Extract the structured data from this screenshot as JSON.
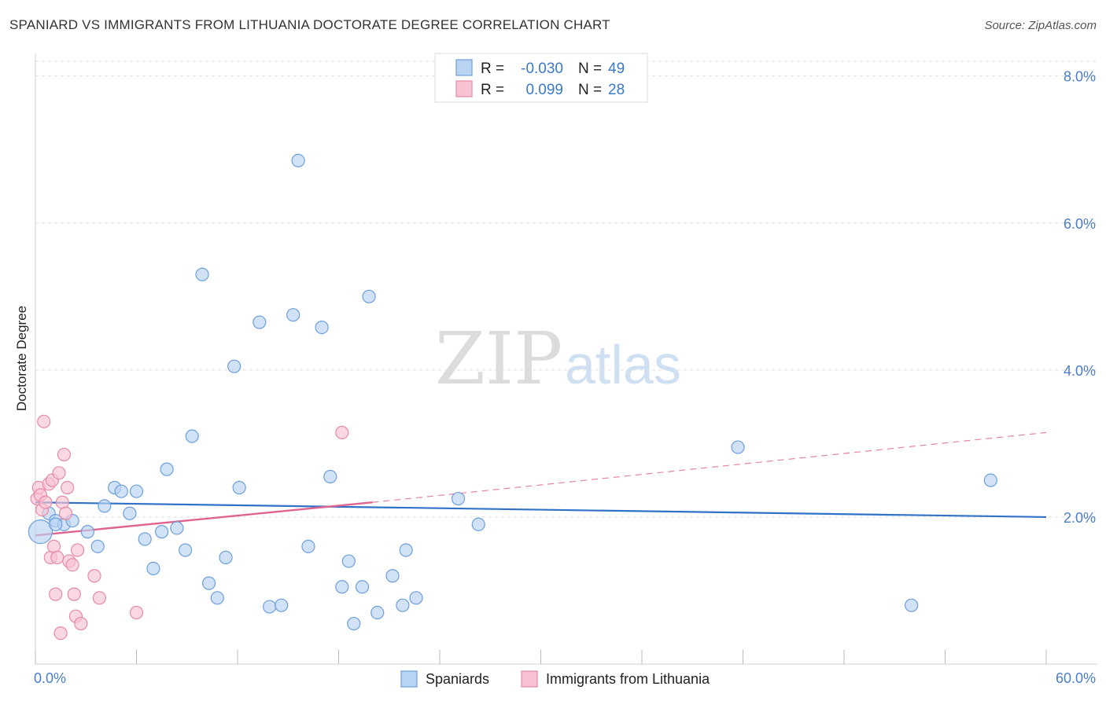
{
  "title": "SPANIARD VS IMMIGRANTS FROM LITHUANIA DOCTORATE DEGREE CORRELATION CHART",
  "source": "Source: ZipAtlas.com",
  "watermark": {
    "zip": "ZIP",
    "atlas": "atlas"
  },
  "colors": {
    "blue_fill": "#b9d3f2",
    "blue_stroke": "#6d9fdb",
    "blue_line": "#2f72c8",
    "pink_fill": "#f7c3d2",
    "pink_stroke": "#e68aa8",
    "pink_line": "#e0648f",
    "grid": "#dddddd",
    "tick_label": "#4a7ec9"
  },
  "legend": {
    "rows": [
      {
        "r_label": "R =",
        "r_value": "-0.030",
        "n_label": "N =",
        "n_value": "49"
      },
      {
        "r_label": "R =",
        "r_value": "0.099",
        "n_label": "N =",
        "n_value": "28"
      }
    ]
  },
  "chart_data": {
    "type": "scatter",
    "title": "SPANIARD VS IMMIGRANTS FROM LITHUANIA DOCTORATE DEGREE CORRELATION CHART",
    "xlabel": "",
    "ylabel": "Doctorate Degree",
    "xlim": [
      0,
      60
    ],
    "ylim": [
      0,
      8.2
    ],
    "x_tick_labels": [
      "0.0%",
      "60.0%"
    ],
    "y_ticks": [
      2,
      4,
      6,
      8
    ],
    "y_tick_labels": [
      "2.0%",
      "4.0%",
      "6.0%",
      "8.0%"
    ],
    "grid": true,
    "series": [
      {
        "name": "Spaniards",
        "r": -0.03,
        "n": 49,
        "trend": {
          "x": [
            0,
            60
          ],
          "y": [
            2.2,
            2.0
          ]
        },
        "points": [
          {
            "x": 0.3,
            "y": 1.8,
            "big": true
          },
          {
            "x": 0.8,
            "y": 2.05
          },
          {
            "x": 1.2,
            "y": 1.95
          },
          {
            "x": 1.7,
            "y": 1.9
          },
          {
            "x": 2.2,
            "y": 1.95
          },
          {
            "x": 3.1,
            "y": 1.8
          },
          {
            "x": 3.7,
            "y": 1.6
          },
          {
            "x": 4.1,
            "y": 2.15
          },
          {
            "x": 4.7,
            "y": 2.4
          },
          {
            "x": 5.1,
            "y": 2.35
          },
          {
            "x": 5.6,
            "y": 2.05
          },
          {
            "x": 6.0,
            "y": 2.35
          },
          {
            "x": 6.5,
            "y": 1.7
          },
          {
            "x": 7.0,
            "y": 1.3
          },
          {
            "x": 7.5,
            "y": 1.8
          },
          {
            "x": 7.8,
            "y": 2.65
          },
          {
            "x": 8.4,
            "y": 1.85
          },
          {
            "x": 8.9,
            "y": 1.55
          },
          {
            "x": 9.3,
            "y": 3.1
          },
          {
            "x": 9.9,
            "y": 5.3
          },
          {
            "x": 10.3,
            "y": 1.1
          },
          {
            "x": 10.8,
            "y": 0.9
          },
          {
            "x": 11.3,
            "y": 1.45
          },
          {
            "x": 11.8,
            "y": 4.05
          },
          {
            "x": 12.1,
            "y": 2.4
          },
          {
            "x": 13.3,
            "y": 4.65
          },
          {
            "x": 13.9,
            "y": 0.78
          },
          {
            "x": 14.6,
            "y": 0.8
          },
          {
            "x": 15.3,
            "y": 4.75
          },
          {
            "x": 15.6,
            "y": 6.85
          },
          {
            "x": 16.2,
            "y": 1.6
          },
          {
            "x": 17.0,
            "y": 4.58
          },
          {
            "x": 17.5,
            "y": 2.55
          },
          {
            "x": 18.2,
            "y": 1.05
          },
          {
            "x": 18.6,
            "y": 1.4
          },
          {
            "x": 18.9,
            "y": 0.55
          },
          {
            "x": 19.4,
            "y": 1.05
          },
          {
            "x": 19.8,
            "y": 5.0
          },
          {
            "x": 20.3,
            "y": 0.7
          },
          {
            "x": 21.2,
            "y": 1.2
          },
          {
            "x": 21.8,
            "y": 0.8
          },
          {
            "x": 22.0,
            "y": 1.55
          },
          {
            "x": 22.6,
            "y": 0.9
          },
          {
            "x": 25.1,
            "y": 2.25
          },
          {
            "x": 26.3,
            "y": 1.9
          },
          {
            "x": 41.7,
            "y": 2.95
          },
          {
            "x": 52.0,
            "y": 0.8
          },
          {
            "x": 56.7,
            "y": 2.5
          },
          {
            "x": 1.2,
            "y": 1.9
          }
        ]
      },
      {
        "name": "Immigrants from Lithuania",
        "r": 0.099,
        "n": 28,
        "trend": {
          "x": [
            0,
            20
          ],
          "y": [
            1.75,
            2.2
          ]
        },
        "trend_extension": {
          "x": [
            20,
            60
          ],
          "y": [
            2.2,
            3.15
          ]
        },
        "points": [
          {
            "x": 0.1,
            "y": 2.25
          },
          {
            "x": 0.2,
            "y": 2.4
          },
          {
            "x": 0.3,
            "y": 2.3
          },
          {
            "x": 0.4,
            "y": 2.1
          },
          {
            "x": 0.5,
            "y": 3.3
          },
          {
            "x": 0.6,
            "y": 2.2
          },
          {
            "x": 0.8,
            "y": 2.45
          },
          {
            "x": 0.9,
            "y": 1.45
          },
          {
            "x": 1.0,
            "y": 2.5
          },
          {
            "x": 1.1,
            "y": 1.6
          },
          {
            "x": 1.2,
            "y": 0.95
          },
          {
            "x": 1.3,
            "y": 1.45
          },
          {
            "x": 1.4,
            "y": 2.6
          },
          {
            "x": 1.5,
            "y": 0.42
          },
          {
            "x": 1.6,
            "y": 2.2
          },
          {
            "x": 1.7,
            "y": 2.85
          },
          {
            "x": 1.8,
            "y": 2.05
          },
          {
            "x": 1.9,
            "y": 2.4
          },
          {
            "x": 2.0,
            "y": 1.4
          },
          {
            "x": 2.2,
            "y": 1.35
          },
          {
            "x": 2.3,
            "y": 0.95
          },
          {
            "x": 2.4,
            "y": 0.65
          },
          {
            "x": 2.5,
            "y": 1.55
          },
          {
            "x": 2.7,
            "y": 0.55
          },
          {
            "x": 3.5,
            "y": 1.2
          },
          {
            "x": 3.8,
            "y": 0.9
          },
          {
            "x": 6.0,
            "y": 0.7
          },
          {
            "x": 18.2,
            "y": 3.15
          }
        ]
      }
    ]
  },
  "bottom_legend": [
    "Spaniards",
    "Immigrants from Lithuania"
  ]
}
